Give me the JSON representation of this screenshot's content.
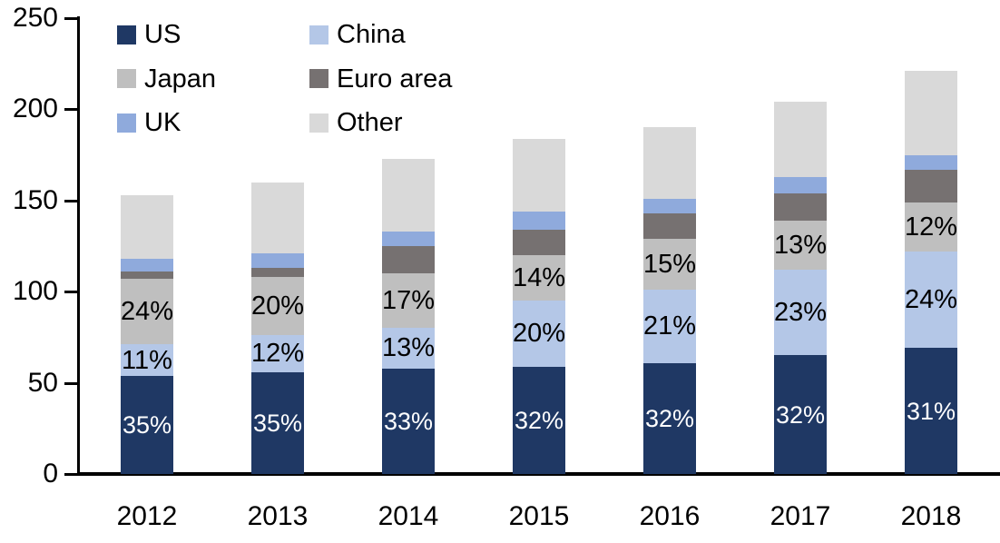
{
  "chart_data": {
    "type": "bar",
    "stacked": true,
    "title": "",
    "xlabel": "",
    "ylabel": "",
    "categories": [
      "2012",
      "2013",
      "2014",
      "2015",
      "2016",
      "2017",
      "2018"
    ],
    "series": [
      {
        "name": "US",
        "color": "#1F3864",
        "values": [
          54,
          56,
          58,
          59,
          61,
          65,
          69
        ],
        "labels": [
          "35%",
          "35%",
          "33%",
          "32%",
          "32%",
          "32%",
          "31%"
        ],
        "label_color": "#FFFFFF"
      },
      {
        "name": "China",
        "color": "#B4C7E7",
        "values": [
          17,
          20,
          22,
          36,
          40,
          47,
          53
        ],
        "labels": [
          "11%",
          "12%",
          "13%",
          "20%",
          "21%",
          "23%",
          "24%"
        ],
        "label_color": "#000000"
      },
      {
        "name": "Japan",
        "color": "#BFBFBF",
        "values": [
          36,
          32,
          30,
          25,
          28,
          27,
          27
        ],
        "labels": [
          "24%",
          "20%",
          "17%",
          "14%",
          "15%",
          "13%",
          "12%"
        ],
        "label_color": "#000000"
      },
      {
        "name": "Euro area",
        "color": "#767171",
        "values": [
          4,
          5,
          15,
          14,
          14,
          15,
          18
        ],
        "labels": null,
        "label_color": null
      },
      {
        "name": "UK",
        "color": "#8FAADC",
        "values": [
          7,
          8,
          8,
          10,
          8,
          9,
          8
        ],
        "labels": null,
        "label_color": null
      },
      {
        "name": "Other",
        "color": "#D9D9D9",
        "values": [
          35,
          39,
          40,
          40,
          39,
          41,
          46
        ],
        "labels": null,
        "label_color": null
      }
    ],
    "totals": [
      153,
      160,
      173,
      184,
      190,
      204,
      221
    ],
    "ylim": [
      0,
      250
    ],
    "yticks": [
      "0",
      "50",
      "100",
      "150",
      "200",
      "250"
    ],
    "grid": false,
    "legend_position": "top-left",
    "legend_columns": 2,
    "legend_order": [
      "US",
      "China",
      "Japan",
      "Euro area",
      "UK",
      "Other"
    ],
    "axis_color": "#000000"
  }
}
